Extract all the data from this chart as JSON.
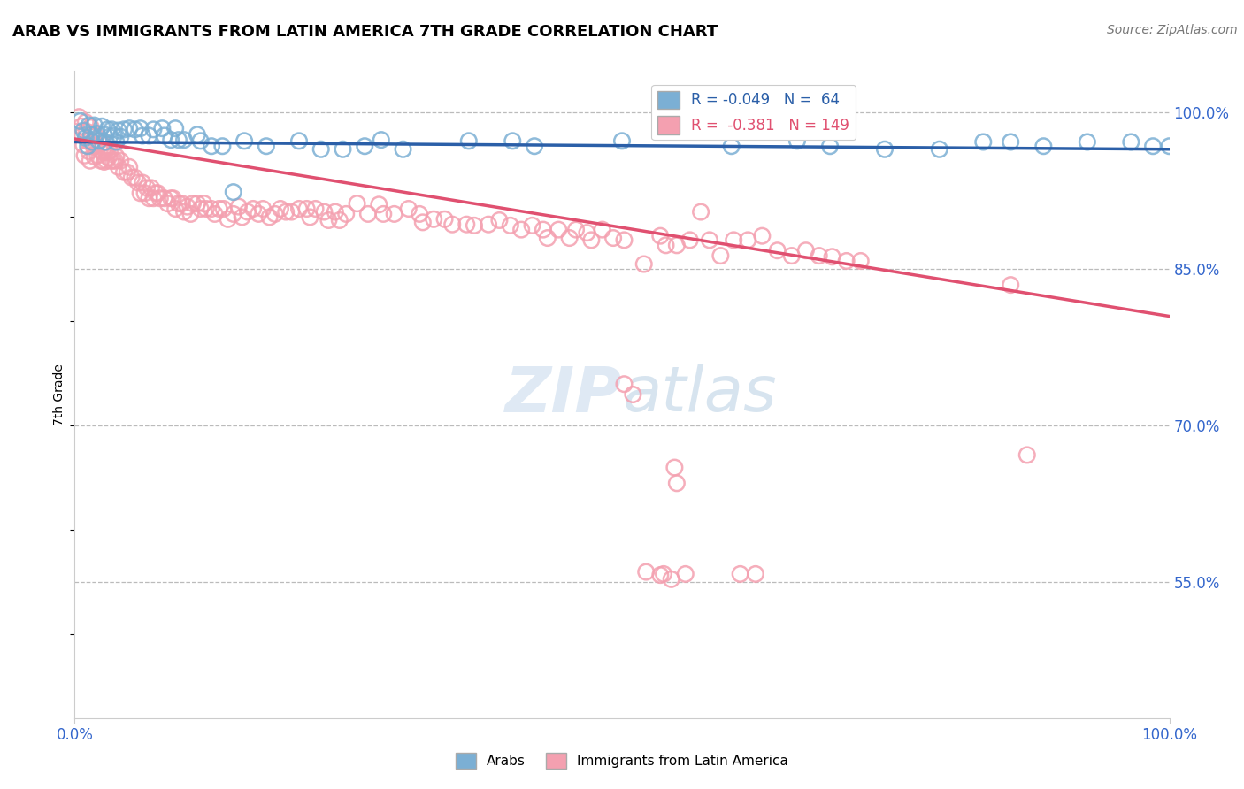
{
  "title": "ARAB VS IMMIGRANTS FROM LATIN AMERICA 7TH GRADE CORRELATION CHART",
  "source": "Source: ZipAtlas.com",
  "ylabel": "7th Grade",
  "arab_color": "#7BAFD4",
  "latin_color": "#F4A0B0",
  "arab_line_color": "#2B5FA8",
  "latin_line_color": "#E05070",
  "watermark_zip": "ZIP",
  "watermark_atlas": "atlas",
  "xlim": [
    0.0,
    1.0
  ],
  "ylim": [
    0.42,
    1.04
  ],
  "ytick_values": [
    0.55,
    0.7,
    0.85,
    1.0
  ],
  "ytick_labels": [
    "55.0%",
    "70.0%",
    "85.0%",
    "100.0%"
  ],
  "arab_R": -0.049,
  "arab_N": 64,
  "latin_R": -0.381,
  "latin_N": 149,
  "arab_line_y0": 0.972,
  "arab_line_y1": 0.965,
  "latin_line_y0": 0.975,
  "latin_line_y1": 0.805,
  "arab_points": [
    [
      0.005,
      0.992
    ],
    [
      0.008,
      0.983
    ],
    [
      0.01,
      0.976
    ],
    [
      0.012,
      0.968
    ],
    [
      0.013,
      0.988
    ],
    [
      0.015,
      0.979
    ],
    [
      0.016,
      0.972
    ],
    [
      0.018,
      0.988
    ],
    [
      0.02,
      0.98
    ],
    [
      0.022,
      0.973
    ],
    [
      0.025,
      0.987
    ],
    [
      0.027,
      0.979
    ],
    [
      0.028,
      0.972
    ],
    [
      0.03,
      0.984
    ],
    [
      0.032,
      0.977
    ],
    [
      0.034,
      0.984
    ],
    [
      0.036,
      0.978
    ],
    [
      0.038,
      0.972
    ],
    [
      0.04,
      0.983
    ],
    [
      0.042,
      0.977
    ],
    [
      0.045,
      0.984
    ],
    [
      0.05,
      0.985
    ],
    [
      0.055,
      0.984
    ],
    [
      0.06,
      0.985
    ],
    [
      0.062,
      0.978
    ],
    [
      0.068,
      0.978
    ],
    [
      0.072,
      0.984
    ],
    [
      0.08,
      0.985
    ],
    [
      0.082,
      0.978
    ],
    [
      0.088,
      0.974
    ],
    [
      0.092,
      0.985
    ],
    [
      0.095,
      0.974
    ],
    [
      0.1,
      0.974
    ],
    [
      0.112,
      0.979
    ],
    [
      0.115,
      0.973
    ],
    [
      0.125,
      0.968
    ],
    [
      0.135,
      0.968
    ],
    [
      0.145,
      0.924
    ],
    [
      0.155,
      0.973
    ],
    [
      0.175,
      0.968
    ],
    [
      0.205,
      0.973
    ],
    [
      0.225,
      0.965
    ],
    [
      0.245,
      0.965
    ],
    [
      0.265,
      0.968
    ],
    [
      0.28,
      0.974
    ],
    [
      0.3,
      0.965
    ],
    [
      0.36,
      0.973
    ],
    [
      0.4,
      0.973
    ],
    [
      0.42,
      0.968
    ],
    [
      0.5,
      0.973
    ],
    [
      0.6,
      0.968
    ],
    [
      0.66,
      0.973
    ],
    [
      0.69,
      0.968
    ],
    [
      0.74,
      0.965
    ],
    [
      0.79,
      0.965
    ],
    [
      0.83,
      0.972
    ],
    [
      0.855,
      0.972
    ],
    [
      0.885,
      0.968
    ],
    [
      0.925,
      0.972
    ],
    [
      0.965,
      0.972
    ],
    [
      0.985,
      0.968
    ],
    [
      1.0,
      0.968
    ]
  ],
  "latin_points": [
    [
      0.004,
      0.996
    ],
    [
      0.006,
      0.987
    ],
    [
      0.007,
      0.978
    ],
    [
      0.008,
      0.969
    ],
    [
      0.009,
      0.959
    ],
    [
      0.01,
      0.991
    ],
    [
      0.011,
      0.982
    ],
    [
      0.012,
      0.973
    ],
    [
      0.013,
      0.963
    ],
    [
      0.014,
      0.954
    ],
    [
      0.015,
      0.986
    ],
    [
      0.016,
      0.977
    ],
    [
      0.017,
      0.968
    ],
    [
      0.018,
      0.958
    ],
    [
      0.019,
      0.978
    ],
    [
      0.02,
      0.969
    ],
    [
      0.021,
      0.959
    ],
    [
      0.022,
      0.973
    ],
    [
      0.023,
      0.964
    ],
    [
      0.024,
      0.954
    ],
    [
      0.025,
      0.971
    ],
    [
      0.026,
      0.962
    ],
    [
      0.027,
      0.953
    ],
    [
      0.028,
      0.963
    ],
    [
      0.029,
      0.954
    ],
    [
      0.03,
      0.962
    ],
    [
      0.031,
      0.957
    ],
    [
      0.032,
      0.963
    ],
    [
      0.033,
      0.954
    ],
    [
      0.035,
      0.954
    ],
    [
      0.037,
      0.954
    ],
    [
      0.038,
      0.958
    ],
    [
      0.04,
      0.948
    ],
    [
      0.042,
      0.954
    ],
    [
      0.045,
      0.943
    ],
    [
      0.048,
      0.943
    ],
    [
      0.05,
      0.948
    ],
    [
      0.052,
      0.938
    ],
    [
      0.055,
      0.938
    ],
    [
      0.058,
      0.933
    ],
    [
      0.06,
      0.923
    ],
    [
      0.062,
      0.933
    ],
    [
      0.064,
      0.923
    ],
    [
      0.066,
      0.928
    ],
    [
      0.068,
      0.918
    ],
    [
      0.07,
      0.928
    ],
    [
      0.072,
      0.918
    ],
    [
      0.074,
      0.923
    ],
    [
      0.076,
      0.923
    ],
    [
      0.078,
      0.918
    ],
    [
      0.082,
      0.918
    ],
    [
      0.085,
      0.913
    ],
    [
      0.088,
      0.918
    ],
    [
      0.09,
      0.918
    ],
    [
      0.092,
      0.908
    ],
    [
      0.095,
      0.913
    ],
    [
      0.098,
      0.913
    ],
    [
      0.1,
      0.905
    ],
    [
      0.103,
      0.91
    ],
    [
      0.106,
      0.903
    ],
    [
      0.108,
      0.913
    ],
    [
      0.112,
      0.913
    ],
    [
      0.115,
      0.908
    ],
    [
      0.118,
      0.913
    ],
    [
      0.12,
      0.908
    ],
    [
      0.125,
      0.908
    ],
    [
      0.128,
      0.903
    ],
    [
      0.132,
      0.908
    ],
    [
      0.136,
      0.908
    ],
    [
      0.14,
      0.898
    ],
    [
      0.145,
      0.903
    ],
    [
      0.15,
      0.91
    ],
    [
      0.153,
      0.9
    ],
    [
      0.158,
      0.905
    ],
    [
      0.163,
      0.908
    ],
    [
      0.168,
      0.903
    ],
    [
      0.172,
      0.908
    ],
    [
      0.178,
      0.9
    ],
    [
      0.183,
      0.903
    ],
    [
      0.188,
      0.908
    ],
    [
      0.193,
      0.905
    ],
    [
      0.198,
      0.905
    ],
    [
      0.205,
      0.908
    ],
    [
      0.212,
      0.908
    ],
    [
      0.215,
      0.9
    ],
    [
      0.22,
      0.908
    ],
    [
      0.228,
      0.905
    ],
    [
      0.232,
      0.897
    ],
    [
      0.238,
      0.905
    ],
    [
      0.242,
      0.897
    ],
    [
      0.248,
      0.903
    ],
    [
      0.258,
      0.913
    ],
    [
      0.268,
      0.903
    ],
    [
      0.278,
      0.912
    ],
    [
      0.282,
      0.903
    ],
    [
      0.292,
      0.903
    ],
    [
      0.305,
      0.908
    ],
    [
      0.315,
      0.903
    ],
    [
      0.318,
      0.895
    ],
    [
      0.328,
      0.898
    ],
    [
      0.338,
      0.898
    ],
    [
      0.345,
      0.893
    ],
    [
      0.358,
      0.893
    ],
    [
      0.365,
      0.892
    ],
    [
      0.378,
      0.893
    ],
    [
      0.388,
      0.897
    ],
    [
      0.398,
      0.892
    ],
    [
      0.408,
      0.888
    ],
    [
      0.418,
      0.892
    ],
    [
      0.428,
      0.888
    ],
    [
      0.432,
      0.88
    ],
    [
      0.442,
      0.888
    ],
    [
      0.452,
      0.88
    ],
    [
      0.458,
      0.888
    ],
    [
      0.468,
      0.885
    ],
    [
      0.472,
      0.878
    ],
    [
      0.482,
      0.888
    ],
    [
      0.492,
      0.88
    ],
    [
      0.502,
      0.878
    ],
    [
      0.52,
      0.855
    ],
    [
      0.535,
      0.882
    ],
    [
      0.54,
      0.873
    ],
    [
      0.55,
      0.873
    ],
    [
      0.562,
      0.878
    ],
    [
      0.572,
      0.905
    ],
    [
      0.58,
      0.878
    ],
    [
      0.59,
      0.863
    ],
    [
      0.602,
      0.878
    ],
    [
      0.615,
      0.878
    ],
    [
      0.628,
      0.882
    ],
    [
      0.642,
      0.868
    ],
    [
      0.655,
      0.863
    ],
    [
      0.668,
      0.868
    ],
    [
      0.68,
      0.863
    ],
    [
      0.692,
      0.862
    ],
    [
      0.705,
      0.858
    ],
    [
      0.718,
      0.858
    ],
    [
      0.855,
      0.835
    ],
    [
      0.87,
      0.672
    ],
    [
      0.502,
      0.74
    ],
    [
      0.51,
      0.73
    ],
    [
      0.548,
      0.66
    ],
    [
      0.522,
      0.56
    ],
    [
      0.535,
      0.557
    ],
    [
      0.545,
      0.553
    ],
    [
      0.558,
      0.558
    ],
    [
      0.608,
      0.558
    ],
    [
      0.622,
      0.558
    ],
    [
      0.55,
      0.645
    ],
    [
      0.538,
      0.558
    ]
  ]
}
